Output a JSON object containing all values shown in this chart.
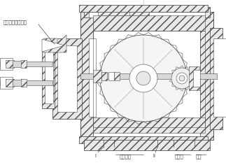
{
  "bg": "white",
  "lc": "#4a4a4a",
  "hc": "#6a6a6a",
  "lw_main": 0.7,
  "lw_thin": 0.4,
  "lw_med": 0.55,
  "fs": 5.0,
  "fs_small": 4.5,
  "label_top": "排气阀芯接压力表",
  "label_I": "I",
  "label_hxhs": "换向活塞",
  "label_II": "II",
  "label_xch": "小齿轮",
  "label_hs": "活塞",
  "fc_hatch": "#e8e8e8",
  "fc_white": "white",
  "fc_light": "#f0f0f0"
}
